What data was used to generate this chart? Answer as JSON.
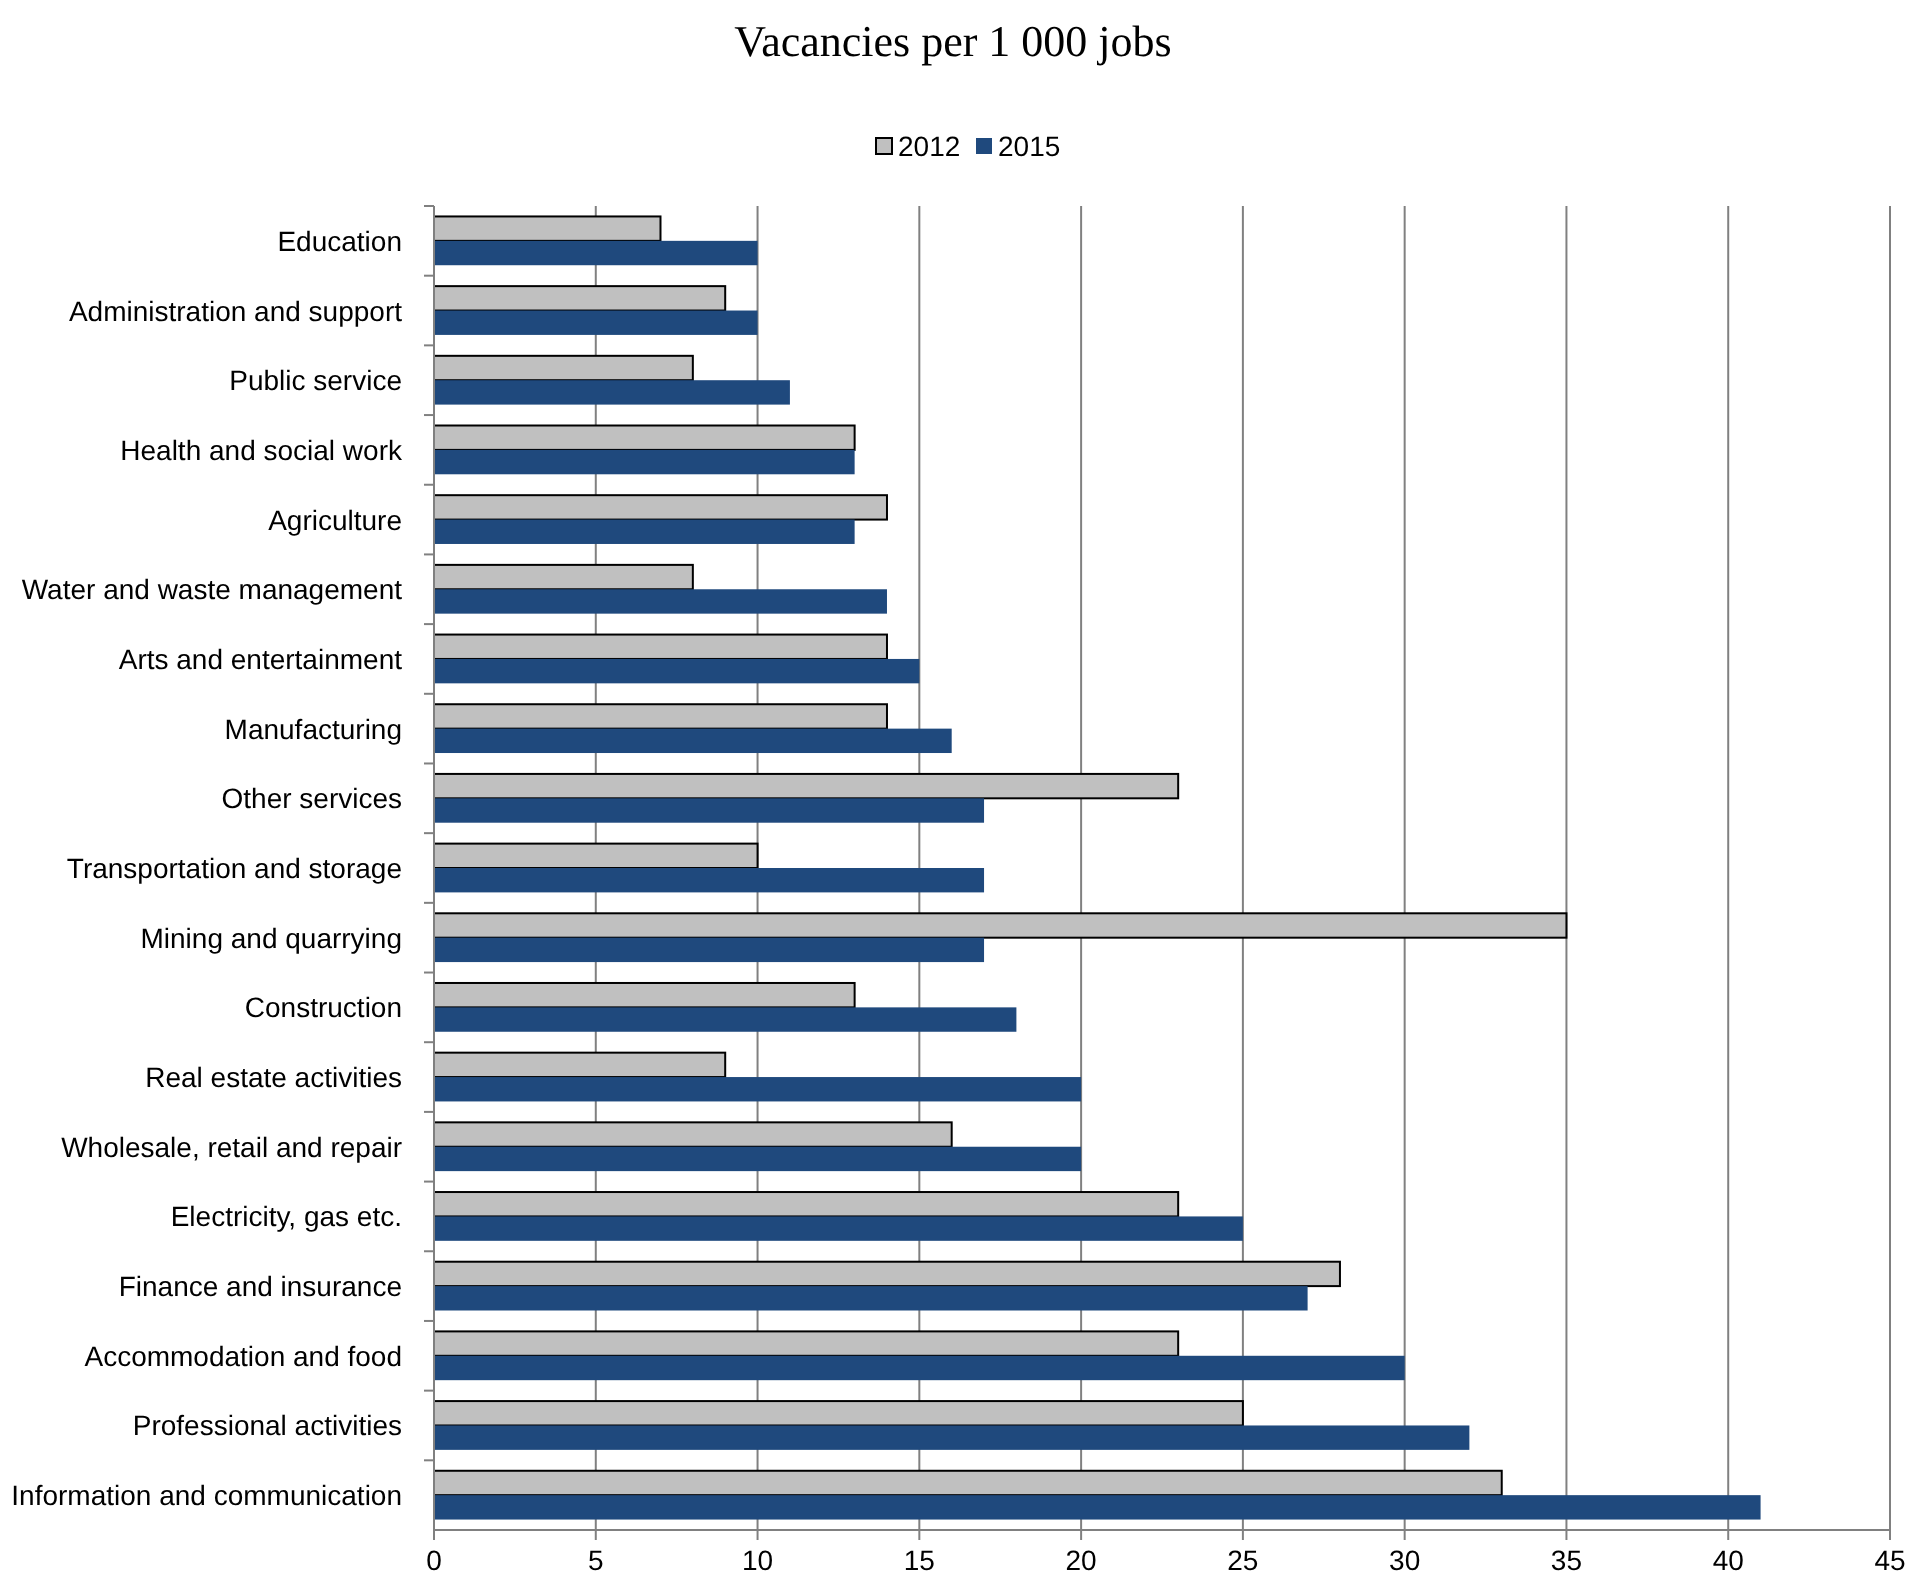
{
  "chart_data": {
    "type": "bar",
    "orientation": "horizontal",
    "title": "Vacancies per 1 000 jobs",
    "categories": [
      "Education",
      "Administration and support",
      "Public service",
      "Health and social work",
      "Agriculture",
      "Water and waste management",
      "Arts and entertainment",
      "Manufacturing",
      "Other services",
      "Transportation and storage",
      "Mining and quarrying",
      "Construction",
      "Real estate activities",
      "Wholesale, retail and repair",
      "Electricity, gas etc.",
      "Finance and insurance",
      "Accommodation and food",
      "Professional activities",
      "Information and communication"
    ],
    "series": [
      {
        "name": "2012",
        "color": "#c0c0c0",
        "values": [
          7,
          9,
          8,
          13,
          14,
          8,
          14,
          14,
          23,
          10,
          35,
          13,
          9,
          16,
          23,
          28,
          23,
          25,
          33
        ]
      },
      {
        "name": "2015",
        "color": "#1f497d",
        "values": [
          10,
          10,
          11,
          13,
          13,
          14,
          15,
          16,
          17,
          17,
          17,
          18,
          20,
          20,
          25,
          27,
          30,
          32,
          41
        ]
      }
    ],
    "xlim": [
      0,
      45
    ],
    "xticks": [
      0,
      5,
      10,
      15,
      20,
      25,
      30,
      35,
      40,
      45
    ],
    "grid": "x",
    "legend": "top"
  }
}
